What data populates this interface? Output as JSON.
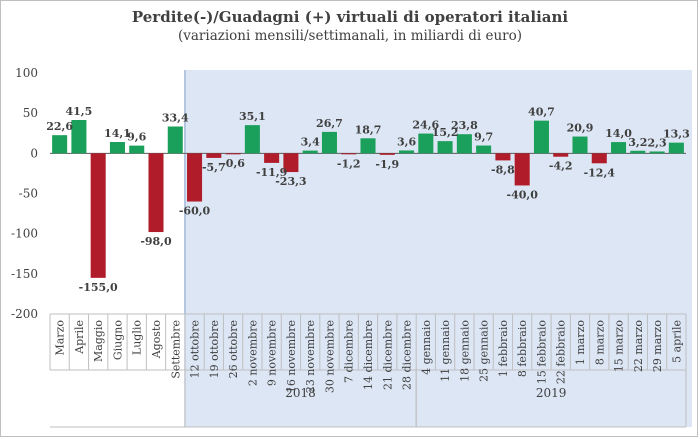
{
  "chart_data": {
    "type": "bar",
    "title": "Perdite(-)/Guadagni (+) virtuali di operatori italiani",
    "subtitle": "(variazioni mensili/settimanali, in miliardi di euro)",
    "ylim": [
      -200,
      100
    ],
    "yticks": [
      100,
      50,
      0,
      -50,
      -100,
      -150,
      -200
    ],
    "positive_color": "#1aa05a",
    "negative_color": "#b01c2a",
    "shade_color": "#dce6f4",
    "categories": [
      "Marzo",
      "Aprile",
      "Maggio",
      "Giugno",
      "Luglio",
      "Agosto",
      "Settembre",
      "12 ottobre",
      "19 ottobre",
      "26 ottobre",
      "2 novembre",
      "9 novembre",
      "16 novembre",
      "23 novembre",
      "30 novembre",
      "7 dicembre",
      "14 dicembre",
      "21 dicembre",
      "28 dicembre",
      "4 gennaio",
      "11 gennaio",
      "18 gennaio",
      "25 gennaio",
      "1 febbraio",
      "8 febbraio",
      "15 febbraio",
      "22 febbraio",
      "1 marzo",
      "8 marzo",
      "15 marzo",
      "22 marzo",
      "29 marzo",
      "5 aprile"
    ],
    "values": [
      22.6,
      41.5,
      -155.0,
      14.1,
      9.6,
      -98.0,
      33.4,
      -60.0,
      -5.7,
      -0.6,
      35.1,
      -11.9,
      -23.3,
      3.4,
      26.7,
      -1.2,
      18.7,
      -1.9,
      3.6,
      24.6,
      15.2,
      23.8,
      9.7,
      -8.8,
      -40.0,
      40.7,
      -4.2,
      20.9,
      -12.4,
      14.0,
      3.2,
      2.3,
      13.3
    ],
    "data_labels": [
      "22,6",
      "41,5",
      "-155,0",
      "14,1",
      "9,6",
      "-98,0",
      "33,4",
      "-60,0",
      "-5,7",
      "-0,6",
      "35,1",
      "-11,9",
      "-23,3",
      "3,4",
      "26,7",
      "-1,2",
      "18,7",
      "-1,9",
      "3,6",
      "24,6",
      "15,2",
      "23,8",
      "9,7",
      "-8,8",
      "-40,0",
      "40,7",
      "-4,2",
      "20,9",
      "-12,4",
      "14,0",
      "3,2",
      "2,3",
      "13,3"
    ],
    "year_groups": [
      {
        "label": "2018",
        "from": 7,
        "to": 18
      },
      {
        "label": "2019",
        "from": 19,
        "to": 32
      }
    ]
  }
}
